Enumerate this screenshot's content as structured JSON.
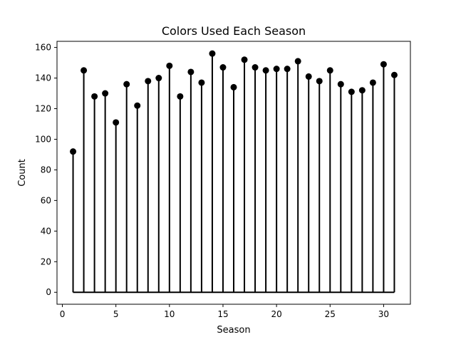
{
  "chart_data": {
    "type": "stem",
    "title": "Colors Used Each Season",
    "xlabel": "Season",
    "ylabel": "Count",
    "xlim": [
      -0.5,
      32.5
    ],
    "ylim": [
      -7.8,
      164
    ],
    "xticks": [
      0,
      5,
      10,
      15,
      20,
      25,
      30
    ],
    "yticks": [
      0,
      20,
      40,
      60,
      80,
      100,
      120,
      140,
      160
    ],
    "baseline": 0,
    "color": "#000000",
    "grid": false,
    "x": [
      1,
      2,
      3,
      4,
      5,
      6,
      7,
      8,
      9,
      10,
      11,
      12,
      13,
      14,
      15,
      16,
      17,
      18,
      19,
      20,
      21,
      22,
      23,
      24,
      25,
      26,
      27,
      28,
      29,
      30,
      31
    ],
    "values": [
      92,
      145,
      128,
      130,
      111,
      136,
      122,
      138,
      140,
      148,
      128,
      144,
      137,
      156,
      147,
      134,
      152,
      147,
      145,
      146,
      146,
      151,
      141,
      138,
      145,
      136,
      131,
      132,
      137,
      149,
      142
    ]
  }
}
